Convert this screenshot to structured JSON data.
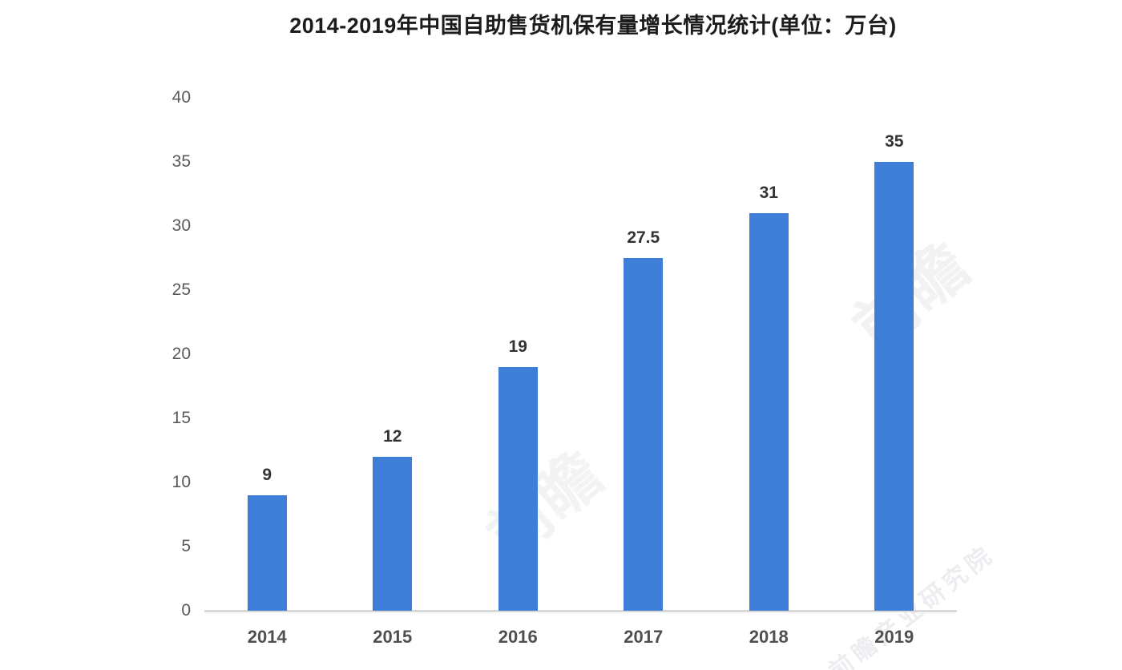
{
  "chart_data": {
    "type": "bar",
    "title": "2014-2019年中国自助售货机保有量增长情况统计(单位：万台)",
    "categories": [
      "2014",
      "2015",
      "2016",
      "2017",
      "2018",
      "2019"
    ],
    "values": [
      9,
      12,
      19,
      27.5,
      31,
      35
    ],
    "value_labels": [
      "9",
      "12",
      "19",
      "27.5",
      "31",
      "35"
    ],
    "series_name": "自助售货机保有量",
    "xlabel": "",
    "ylabel": "",
    "ylim": [
      0,
      40
    ],
    "yticks": [
      0,
      5,
      10,
      15,
      20,
      25,
      30,
      35,
      40
    ],
    "grid": false,
    "legend": null,
    "bar_color": "#3e7ed9",
    "axis_line_color": "#dadada",
    "y_tick_label_color": "#595959",
    "x_tick_label_color": "#4f4f4f",
    "value_label_color": "#333333",
    "title_color": "#1c1c1c"
  },
  "watermark": {
    "short": "前瞻",
    "text": "前瞻产业研究院"
  }
}
